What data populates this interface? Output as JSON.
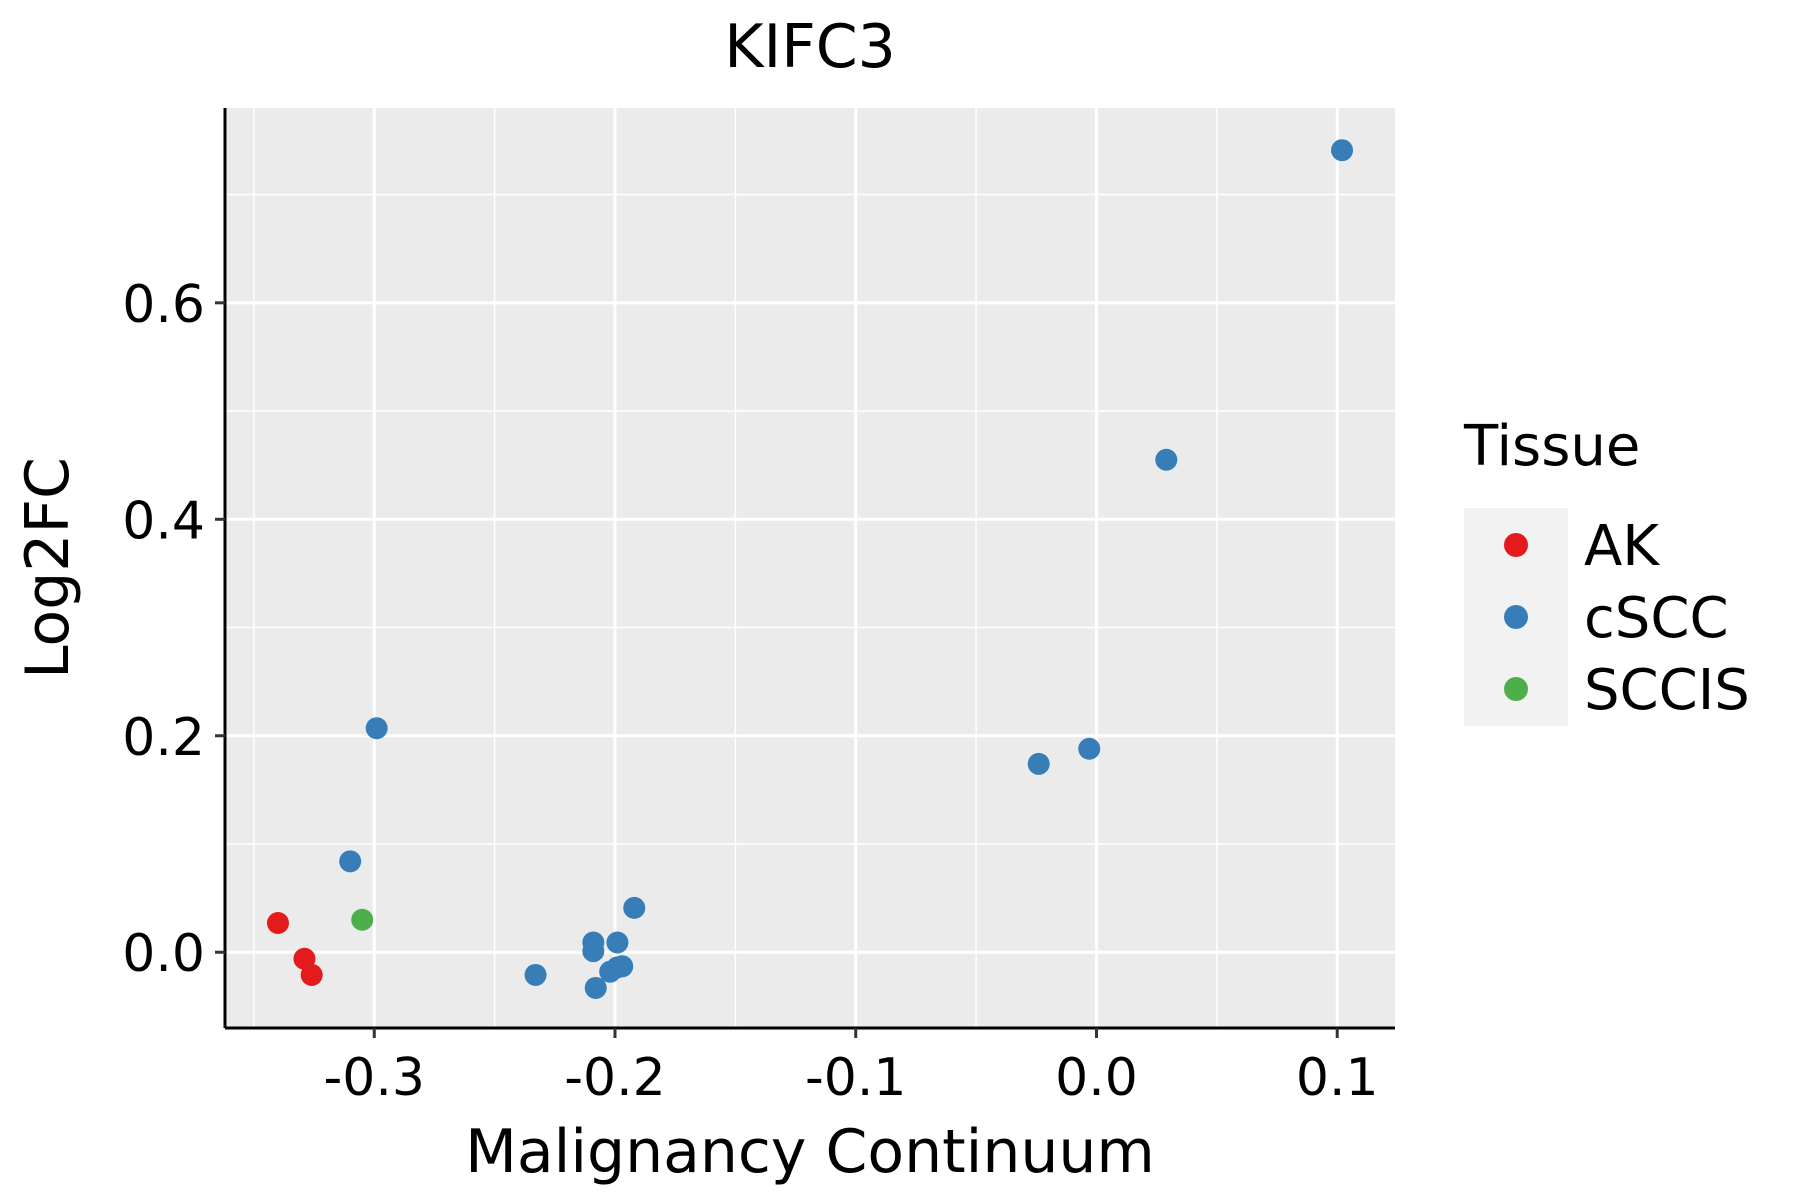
{
  "chart_data": {
    "type": "scatter",
    "title": "KIFC3",
    "xlabel": "Malignancy Continuum",
    "ylabel": "Log2FC",
    "xlim": [
      -0.362,
      0.124
    ],
    "ylim": [
      -0.07,
      0.78
    ],
    "x_ticks": [
      -0.3,
      -0.2,
      -0.1,
      0.0,
      0.1
    ],
    "x_tick_labels": [
      "-0.3",
      "-0.2",
      "-0.1",
      "0.0",
      "0.1"
    ],
    "y_ticks": [
      0.0,
      0.2,
      0.4,
      0.6
    ],
    "y_tick_labels": [
      "0.0",
      "0.2",
      "0.4",
      "0.6"
    ],
    "grid": true,
    "legend": {
      "title": "Tissue",
      "position": "right",
      "entries": [
        {
          "label": "AK",
          "color": "#E41A1C"
        },
        {
          "label": "cSCC",
          "color": "#377EB8"
        },
        {
          "label": "SCCIS",
          "color": "#4DAF4A"
        }
      ]
    },
    "series": [
      {
        "name": "AK",
        "color": "#E41A1C",
        "points": [
          [
            -0.34,
            0.027
          ],
          [
            -0.329,
            -0.006
          ],
          [
            -0.326,
            -0.021
          ]
        ]
      },
      {
        "name": "cSCC",
        "color": "#377EB8",
        "points": [
          [
            -0.299,
            0.207
          ],
          [
            -0.31,
            0.084
          ],
          [
            -0.233,
            -0.021
          ],
          [
            -0.209,
            0.009
          ],
          [
            -0.209,
            0.001
          ],
          [
            -0.208,
            -0.033
          ],
          [
            -0.202,
            -0.018
          ],
          [
            -0.199,
            0.009
          ],
          [
            -0.199,
            -0.014
          ],
          [
            -0.197,
            -0.013
          ],
          [
            -0.192,
            0.041
          ],
          [
            -0.024,
            0.174
          ],
          [
            -0.003,
            0.188
          ],
          [
            0.029,
            0.455
          ],
          [
            0.102,
            0.741
          ]
        ]
      },
      {
        "name": "SCCIS",
        "color": "#4DAF4A",
        "points": [
          [
            -0.305,
            0.03
          ]
        ]
      }
    ]
  }
}
